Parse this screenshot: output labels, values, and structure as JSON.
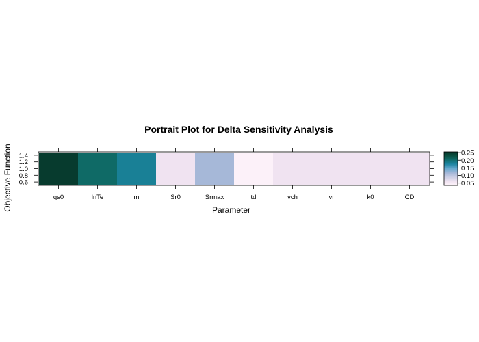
{
  "chart_data": {
    "type": "heatmap",
    "title": "Portrait Plot for Delta Sensitivity Analysis",
    "xlabel": "Parameter",
    "ylabel": "Objective Function",
    "x_categories": [
      "qs0",
      "lnTe",
      "m",
      "Sr0",
      "Srmax",
      "td",
      "vch",
      "vr",
      "k0",
      "CD"
    ],
    "y_ticks": [
      "0.6",
      "0.8",
      "1.0",
      "1.2",
      "1.4"
    ],
    "ylim": [
      0.5,
      1.5
    ],
    "values": [
      0.25,
      0.205,
      0.18,
      0.06,
      0.115,
      0.04,
      0.06,
      0.06,
      0.06,
      0.06
    ],
    "colorbar": {
      "range": [
        0.035,
        0.255
      ],
      "ticks": [
        "0.05",
        "0.10",
        "0.15",
        "0.20",
        "0.25"
      ],
      "tick_values": [
        0.05,
        0.1,
        0.15,
        0.2,
        0.25
      ],
      "stops": [
        {
          "v": 0.035,
          "color": "#fff5fb"
        },
        {
          "v": 0.06,
          "color": "#f0e3f1"
        },
        {
          "v": 0.085,
          "color": "#d0d1e6"
        },
        {
          "v": 0.115,
          "color": "#a6b8d8"
        },
        {
          "v": 0.145,
          "color": "#67a9cf"
        },
        {
          "v": 0.175,
          "color": "#1b84a0"
        },
        {
          "v": 0.205,
          "color": "#0f6a66"
        },
        {
          "v": 0.23,
          "color": "#0a4f40"
        },
        {
          "v": 0.255,
          "color": "#06362a"
        }
      ]
    },
    "grid": false,
    "legend": "right colorbar"
  }
}
